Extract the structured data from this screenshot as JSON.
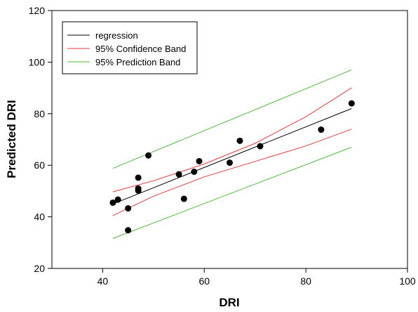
{
  "chart_data": {
    "type": "scatter",
    "xlabel": "DRI",
    "ylabel": "Predicted DRI",
    "xlim": [
      30,
      100
    ],
    "ylim": [
      20,
      120
    ],
    "xticks": [
      40,
      60,
      80,
      100
    ],
    "yticks": [
      20,
      40,
      60,
      80,
      100,
      120
    ],
    "grid": false,
    "legend_position": "top-left",
    "points": [
      {
        "x": 42,
        "y": 45.5
      },
      {
        "x": 43,
        "y": 46.7
      },
      {
        "x": 45,
        "y": 43.3
      },
      {
        "x": 45,
        "y": 34.8
      },
      {
        "x": 47,
        "y": 55.2
      },
      {
        "x": 47,
        "y": 51.0
      },
      {
        "x": 47,
        "y": 50.2
      },
      {
        "x": 49,
        "y": 63.8
      },
      {
        "x": 55,
        "y": 56.5
      },
      {
        "x": 56,
        "y": 47.0
      },
      {
        "x": 58,
        "y": 57.5
      },
      {
        "x": 59,
        "y": 61.6
      },
      {
        "x": 65,
        "y": 61.0
      },
      {
        "x": 67,
        "y": 69.5
      },
      {
        "x": 71,
        "y": 67.4
      },
      {
        "x": 83,
        "y": 73.8
      },
      {
        "x": 89,
        "y": 84.0
      }
    ],
    "series": [
      {
        "name": "regression",
        "color": "#000000",
        "x": [
          42,
          89
        ],
        "y": [
          45.0,
          82.0
        ]
      },
      {
        "name": "95% Confidence Band",
        "color": "#e8393a",
        "x": [
          42,
          50,
          60,
          70,
          80,
          89
        ],
        "y": [
          49.7,
          54.0,
          60.5,
          68.5,
          78.8,
          90.0
        ]
      },
      {
        "name": "95% Confidence Band",
        "color": "#e8393a",
        "x": [
          42,
          50,
          60,
          70,
          80,
          89
        ],
        "y": [
          40.5,
          48.0,
          55.5,
          61.5,
          67.5,
          74.0
        ]
      },
      {
        "name": "95% Prediction Band",
        "color": "#4cbb3a",
        "x": [
          42,
          89
        ],
        "y": [
          58.8,
          97.0
        ]
      },
      {
        "name": "95% Prediction Band",
        "color": "#4cbb3a",
        "x": [
          42,
          89
        ],
        "y": [
          31.6,
          67.0
        ]
      }
    ],
    "legend": [
      {
        "label": "regression",
        "color": "#000000"
      },
      {
        "label": "95% Confidence Band",
        "color": "#e8393a"
      },
      {
        "label": "95% Prediction Band",
        "color": "#4cbb3a"
      }
    ]
  }
}
